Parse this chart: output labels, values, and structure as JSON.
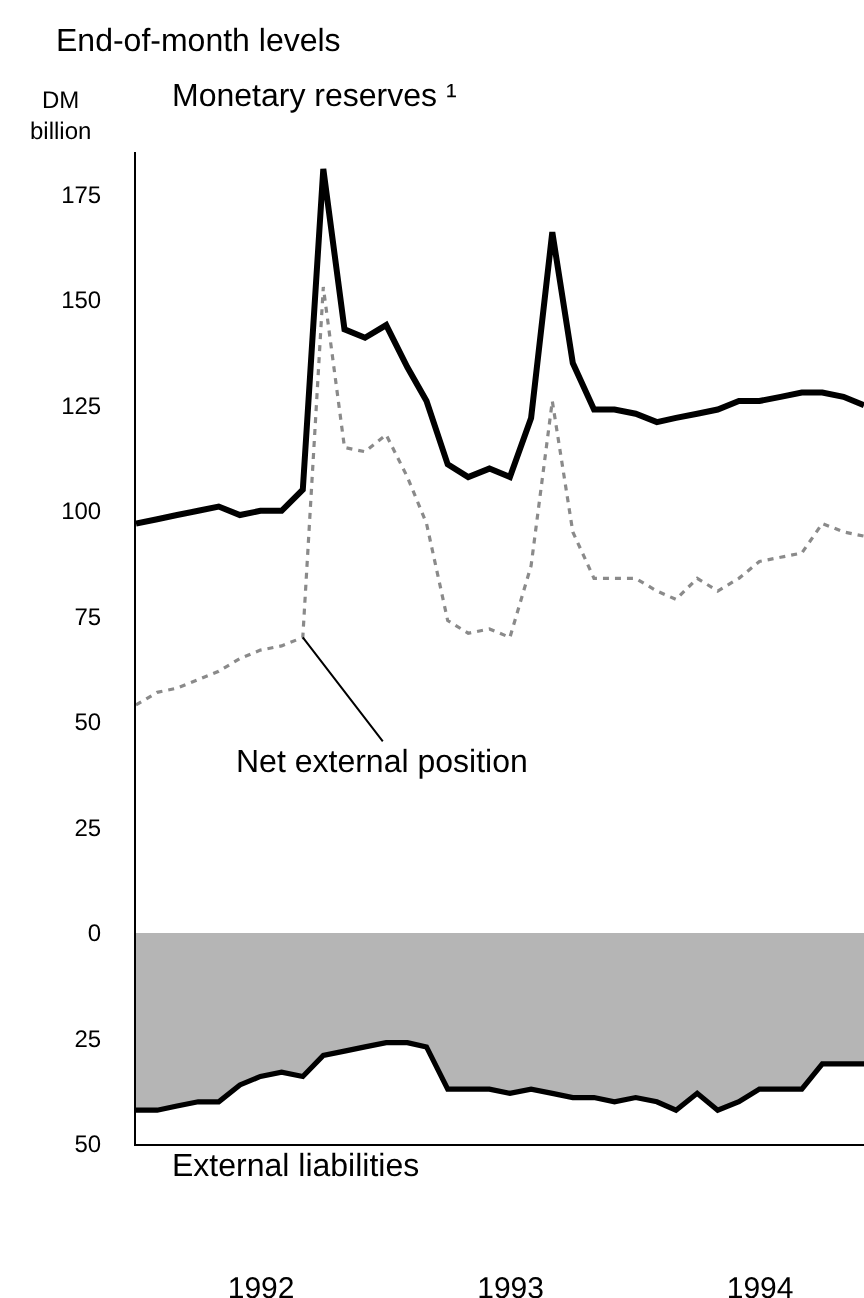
{
  "chart_data": {
    "type": "line",
    "title": "End-of-month levels",
    "ylabel": "DM billion",
    "x": [
      "1991-12-31",
      "1992-01-31",
      "1992-02-29",
      "1992-03-31",
      "1992-04-30",
      "1992-05-31",
      "1992-06-30",
      "1992-07-31",
      "1992-08-31",
      "1992-09-30",
      "1992-10-31",
      "1992-11-30",
      "1992-12-31",
      "1993-01-31",
      "1993-02-28",
      "1993-03-31",
      "1993-04-30",
      "1993-05-31",
      "1993-06-30",
      "1993-07-31",
      "1993-08-31",
      "1993-09-30",
      "1993-10-31",
      "1993-11-30",
      "1993-12-31",
      "1994-01-31",
      "1994-02-28",
      "1994-03-31",
      "1994-04-30",
      "1994-05-31",
      "1994-06-30",
      "1994-07-31",
      "1994-08-31",
      "1994-09-30",
      "1994-10-31",
      "1994-11-30"
    ],
    "series": [
      {
        "name": "Monetary reserves ¹",
        "color": "#000000",
        "line_style": "solid",
        "values": [
          97,
          98,
          99,
          100,
          101,
          99,
          100,
          100,
          105,
          181,
          143,
          141,
          144,
          134,
          126,
          111,
          108,
          110,
          108,
          122,
          166,
          135,
          124,
          124,
          123,
          121,
          122,
          123,
          124,
          126,
          126,
          127,
          128,
          128,
          127,
          125
        ]
      },
      {
        "name": "Net external position",
        "color": "#8a8a8a",
        "line_style": "dotted",
        "values": [
          54,
          57,
          58,
          60,
          62,
          65,
          67,
          68,
          70,
          153,
          115,
          114,
          118,
          108,
          97,
          74,
          71,
          72,
          70,
          87,
          126,
          95,
          84,
          84,
          84,
          81,
          79,
          84,
          81,
          84,
          88,
          89,
          90,
          97,
          95,
          94
        ]
      },
      {
        "name": "External liabilities",
        "type": "area",
        "color": "#b5b5b5",
        "values": [
          -42,
          -42,
          -41,
          -40,
          -40,
          -36,
          -34,
          -33,
          -34,
          -29,
          -28,
          -27,
          -26,
          -26,
          -27,
          -37,
          -37,
          -37,
          -38,
          -37,
          -38,
          -39,
          -39,
          -40,
          -39,
          -40,
          -42,
          -38,
          -42,
          -40,
          -37,
          -37,
          -37,
          -31,
          -31,
          -31
        ]
      }
    ],
    "xticks": [
      {
        "value": "1992-07-01",
        "label": "1992"
      },
      {
        "value": "1993-07-01",
        "label": "1993"
      },
      {
        "value": "1994-07-01",
        "label": "1994"
      }
    ],
    "xlim": [
      "1991-12-31",
      "1994-11-30"
    ],
    "ylim": [
      -50,
      185
    ],
    "yticks": [
      {
        "value": -50,
        "label": "50"
      },
      {
        "value": -25,
        "label": "25"
      },
      0,
      25,
      50,
      75,
      100,
      125,
      150,
      175
    ],
    "legend": false
  }
}
